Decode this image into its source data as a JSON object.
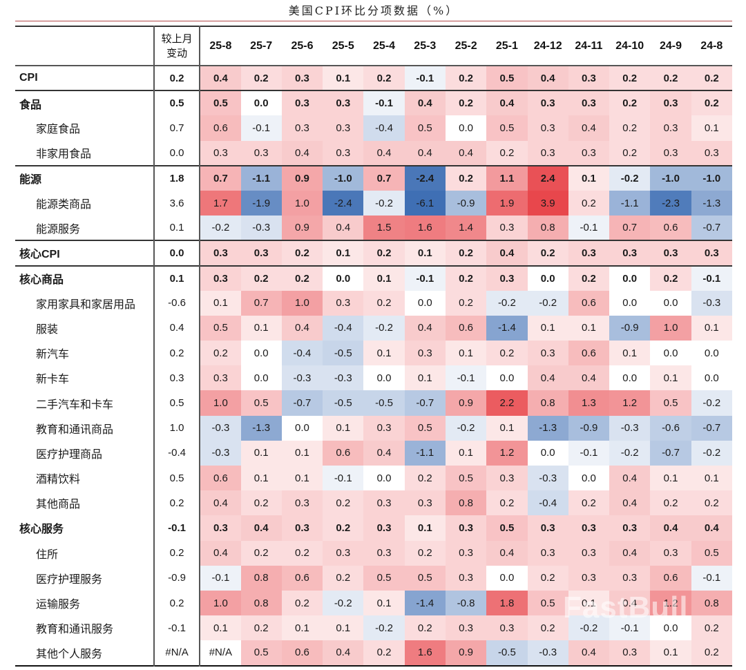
{
  "title": "美国CPI环比分项数据（%）",
  "watermark": "FastBull",
  "colors": {
    "positive_max": "#e8474c",
    "negative_max": "#3f6fb4",
    "neutral": "#ffffff",
    "text": "#1a1a1a"
  },
  "header": {
    "change_label_line1": "较上月",
    "change_label_line2": "变动",
    "months": [
      "25-8",
      "25-7",
      "25-6",
      "25-5",
      "25-4",
      "25-3",
      "25-2",
      "25-1",
      "24-12",
      "24-11",
      "24-10",
      "24-9",
      "24-8"
    ]
  },
  "rows": [
    {
      "label": "CPI",
      "level": 0,
      "bold": true,
      "group_start": true,
      "change": "0.2",
      "values": [
        "0.4",
        "0.2",
        "0.3",
        "0.1",
        "0.2",
        "-0.1",
        "0.2",
        "0.5",
        "0.4",
        "0.3",
        "0.2",
        "0.2",
        "0.2"
      ]
    },
    {
      "label": "食品",
      "level": 0,
      "bold": true,
      "group_start": true,
      "change": "0.5",
      "values": [
        "0.5",
        "0.0",
        "0.3",
        "0.3",
        "-0.1",
        "0.4",
        "0.2",
        "0.4",
        "0.3",
        "0.3",
        "0.2",
        "0.3",
        "0.2"
      ]
    },
    {
      "label": "家庭食品",
      "level": 1,
      "bold": false,
      "group_start": false,
      "change": "0.7",
      "values": [
        "0.6",
        "-0.1",
        "0.3",
        "0.3",
        "-0.4",
        "0.5",
        "0.0",
        "0.5",
        "0.3",
        "0.4",
        "0.2",
        "0.3",
        "0.1"
      ]
    },
    {
      "label": "非家用食品",
      "level": 1,
      "bold": false,
      "group_start": false,
      "change": "0.0",
      "values": [
        "0.3",
        "0.3",
        "0.4",
        "0.3",
        "0.4",
        "0.4",
        "0.4",
        "0.2",
        "0.3",
        "0.3",
        "0.2",
        "0.3",
        "0.3"
      ]
    },
    {
      "label": "能源",
      "level": 0,
      "bold": true,
      "group_start": true,
      "change": "1.8",
      "values": [
        "0.7",
        "-1.1",
        "0.9",
        "-1.0",
        "0.7",
        "-2.4",
        "0.2",
        "1.1",
        "2.4",
        "0.1",
        "-0.2",
        "-1.0",
        "-1.0"
      ]
    },
    {
      "label": "能源类商品",
      "level": 1,
      "bold": false,
      "group_start": false,
      "change": "3.6",
      "values": [
        "1.7",
        "-1.9",
        "1.0",
        "-2.4",
        "-0.2",
        "-6.1",
        "-0.9",
        "1.9",
        "3.9",
        "0.2",
        "-1.1",
        "-2.3",
        "-1.3"
      ]
    },
    {
      "label": "能源服务",
      "level": 1,
      "bold": false,
      "group_start": false,
      "change": "0.1",
      "values": [
        "-0.2",
        "-0.3",
        "0.9",
        "0.4",
        "1.5",
        "1.6",
        "1.4",
        "0.3",
        "0.8",
        "-0.1",
        "0.7",
        "0.6",
        "-0.7"
      ]
    },
    {
      "label": "核心CPI",
      "level": 0,
      "bold": true,
      "group_start": true,
      "change": "0.0",
      "values": [
        "0.3",
        "0.3",
        "0.2",
        "0.1",
        "0.2",
        "0.1",
        "0.2",
        "0.4",
        "0.2",
        "0.3",
        "0.3",
        "0.3",
        "0.3"
      ]
    },
    {
      "label": "核心商品",
      "level": 0,
      "bold": true,
      "group_start": true,
      "change": "0.1",
      "values": [
        "0.3",
        "0.2",
        "0.2",
        "0.0",
        "0.1",
        "-0.1",
        "0.2",
        "0.3",
        "0.0",
        "0.2",
        "0.0",
        "0.2",
        "-0.1"
      ]
    },
    {
      "label": "家用家具和家居用品",
      "level": 1,
      "bold": false,
      "group_start": false,
      "change": "-0.6",
      "values": [
        "0.1",
        "0.7",
        "1.0",
        "0.3",
        "0.2",
        "0.0",
        "0.2",
        "-0.2",
        "-0.2",
        "0.6",
        "0.0",
        "0.0",
        "-0.3"
      ]
    },
    {
      "label": "服装",
      "level": 1,
      "bold": false,
      "group_start": false,
      "change": "0.4",
      "values": [
        "0.5",
        "0.1",
        "0.4",
        "-0.4",
        "-0.2",
        "0.4",
        "0.6",
        "-1.4",
        "0.1",
        "0.1",
        "-0.9",
        "1.0",
        "0.1"
      ]
    },
    {
      "label": "新汽车",
      "level": 1,
      "bold": false,
      "group_start": false,
      "change": "0.2",
      "values": [
        "0.2",
        "0.0",
        "-0.4",
        "-0.5",
        "0.1",
        "0.3",
        "0.1",
        "0.2",
        "0.3",
        "0.6",
        "0.1",
        "0.0",
        "0.0"
      ]
    },
    {
      "label": "新卡车",
      "level": 1,
      "bold": false,
      "group_start": false,
      "change": "0.3",
      "values": [
        "0.3",
        "0.0",
        "-0.3",
        "-0.3",
        "0.0",
        "0.1",
        "-0.1",
        "0.0",
        "0.4",
        "0.4",
        "0.0",
        "0.1",
        "0.0"
      ]
    },
    {
      "label": "二手汽车和卡车",
      "level": 1,
      "bold": false,
      "group_start": false,
      "change": "0.5",
      "values": [
        "1.0",
        "0.5",
        "-0.7",
        "-0.5",
        "-0.5",
        "-0.7",
        "0.9",
        "2.2",
        "0.8",
        "1.3",
        "1.2",
        "0.5",
        "-0.2"
      ]
    },
    {
      "label": "教育和通讯商品",
      "level": 1,
      "bold": false,
      "group_start": false,
      "change": "1.0",
      "values": [
        "-0.3",
        "-1.3",
        "0.0",
        "0.1",
        "0.3",
        "0.5",
        "-0.2",
        "0.1",
        "-1.3",
        "-0.9",
        "-0.3",
        "-0.6",
        "-0.7"
      ]
    },
    {
      "label": "医疗护理商品",
      "level": 1,
      "bold": false,
      "group_start": false,
      "change": "-0.4",
      "values": [
        "-0.3",
        "0.1",
        "0.1",
        "0.6",
        "0.4",
        "-1.1",
        "0.1",
        "1.2",
        "0.0",
        "-0.1",
        "-0.2",
        "-0.7",
        "-0.2"
      ]
    },
    {
      "label": "酒精饮料",
      "level": 1,
      "bold": false,
      "group_start": false,
      "change": "0.5",
      "values": [
        "0.6",
        "0.1",
        "0.1",
        "-0.1",
        "0.0",
        "0.2",
        "0.5",
        "0.3",
        "-0.3",
        "0.0",
        "0.4",
        "0.1",
        "0.1"
      ]
    },
    {
      "label": "其他商品",
      "level": 1,
      "bold": false,
      "group_start": false,
      "change": "0.2",
      "values": [
        "0.4",
        "0.2",
        "0.3",
        "0.2",
        "0.3",
        "0.3",
        "0.8",
        "0.2",
        "-0.4",
        "0.2",
        "0.4",
        "0.2",
        "0.2"
      ]
    },
    {
      "label": "核心服务",
      "level": 0,
      "bold": true,
      "group_start": false,
      "change": "-0.1",
      "values": [
        "0.3",
        "0.4",
        "0.3",
        "0.2",
        "0.3",
        "0.1",
        "0.3",
        "0.5",
        "0.3",
        "0.3",
        "0.3",
        "0.4",
        "0.4"
      ]
    },
    {
      "label": "住所",
      "level": 1,
      "bold": false,
      "group_start": false,
      "change": "0.2",
      "values": [
        "0.4",
        "0.2",
        "0.2",
        "0.3",
        "0.3",
        "0.2",
        "0.3",
        "0.4",
        "0.3",
        "0.3",
        "0.4",
        "0.3",
        "0.5"
      ]
    },
    {
      "label": "医疗护理服务",
      "level": 1,
      "bold": false,
      "group_start": false,
      "change": "-0.9",
      "values": [
        "-0.1",
        "0.8",
        "0.6",
        "0.2",
        "0.5",
        "0.5",
        "0.3",
        "0.0",
        "0.2",
        "0.3",
        "0.3",
        "0.6",
        "-0.1"
      ]
    },
    {
      "label": "运输服务",
      "level": 1,
      "bold": false,
      "group_start": false,
      "change": "0.2",
      "values": [
        "1.0",
        "0.8",
        "0.2",
        "-0.2",
        "0.1",
        "-1.4",
        "-0.8",
        "1.8",
        "0.5",
        "0.1",
        "0.4",
        "1.2",
        "0.8"
      ]
    },
    {
      "label": "教育和通讯服务",
      "level": 1,
      "bold": false,
      "group_start": false,
      "change": "-0.1",
      "values": [
        "0.1",
        "0.2",
        "0.1",
        "0.1",
        "-0.2",
        "0.2",
        "0.3",
        "0.3",
        "0.2",
        "-0.2",
        "-0.1",
        "0.0",
        "0.2"
      ]
    },
    {
      "label": "其他个人服务",
      "level": 1,
      "bold": false,
      "group_start": false,
      "change": "#N/A",
      "values": [
        "#N/A",
        "0.5",
        "0.6",
        "0.4",
        "0.2",
        "1.6",
        "0.9",
        "-0.5",
        "-0.3",
        "0.4",
        "0.3",
        "0.1",
        "0.2"
      ]
    }
  ],
  "chart_data": {
    "type": "heatmap",
    "title": "美国CPI环比分项数据（%）",
    "xlabel": "",
    "ylabel": "",
    "columns": [
      "较上月变动",
      "25-8",
      "25-7",
      "25-6",
      "25-5",
      "25-4",
      "25-3",
      "25-2",
      "25-1",
      "24-12",
      "24-11",
      "24-10",
      "24-9",
      "24-8"
    ],
    "categories": [
      "25-8",
      "25-7",
      "25-6",
      "25-5",
      "25-4",
      "25-3",
      "25-2",
      "25-1",
      "24-12",
      "24-11",
      "24-10",
      "24-9",
      "24-8"
    ],
    "row_labels": [
      "CPI",
      "食品",
      "家庭食品",
      "非家用食品",
      "能源",
      "能源类商品",
      "能源服务",
      "核心CPI",
      "核心商品",
      "家用家具和家居用品",
      "服装",
      "新汽车",
      "新卡车",
      "二手汽车和卡车",
      "教育和通讯商品",
      "医疗护理商品",
      "酒精饮料",
      "其他商品",
      "核心服务",
      "住所",
      "医疗护理服务",
      "运输服务",
      "教育和通讯服务",
      "其他个人服务"
    ],
    "change_vs_prior_month": [
      0.2,
      0.5,
      0.7,
      0.0,
      1.8,
      3.6,
      0.1,
      0.0,
      0.1,
      -0.6,
      0.4,
      0.2,
      0.3,
      0.5,
      1.0,
      -0.4,
      0.5,
      0.2,
      -0.1,
      0.2,
      -0.9,
      0.2,
      -0.1,
      null
    ],
    "series": [
      {
        "name": "CPI",
        "values": [
          0.4,
          0.2,
          0.3,
          0.1,
          0.2,
          -0.1,
          0.2,
          0.5,
          0.4,
          0.3,
          0.2,
          0.2,
          0.2
        ]
      },
      {
        "name": "食品",
        "values": [
          0.5,
          0.0,
          0.3,
          0.3,
          -0.1,
          0.4,
          0.2,
          0.4,
          0.3,
          0.3,
          0.2,
          0.3,
          0.2
        ]
      },
      {
        "name": "家庭食品",
        "values": [
          0.6,
          -0.1,
          0.3,
          0.3,
          -0.4,
          0.5,
          0.0,
          0.5,
          0.3,
          0.4,
          0.2,
          0.3,
          0.1
        ]
      },
      {
        "name": "非家用食品",
        "values": [
          0.3,
          0.3,
          0.4,
          0.3,
          0.4,
          0.4,
          0.4,
          0.2,
          0.3,
          0.3,
          0.2,
          0.3,
          0.3
        ]
      },
      {
        "name": "能源",
        "values": [
          0.7,
          -1.1,
          0.9,
          -1.0,
          0.7,
          -2.4,
          0.2,
          1.1,
          2.4,
          0.1,
          -0.2,
          -1.0,
          -1.0
        ]
      },
      {
        "name": "能源类商品",
        "values": [
          1.7,
          -1.9,
          1.0,
          -2.4,
          -0.2,
          -6.1,
          -0.9,
          1.9,
          3.9,
          0.2,
          -1.1,
          -2.3,
          -1.3
        ]
      },
      {
        "name": "能源服务",
        "values": [
          -0.2,
          -0.3,
          0.9,
          0.4,
          1.5,
          1.6,
          1.4,
          0.3,
          0.8,
          -0.1,
          0.7,
          0.6,
          -0.7
        ]
      },
      {
        "name": "核心CPI",
        "values": [
          0.3,
          0.3,
          0.2,
          0.1,
          0.2,
          0.1,
          0.2,
          0.4,
          0.2,
          0.3,
          0.3,
          0.3,
          0.3
        ]
      },
      {
        "name": "核心商品",
        "values": [
          0.3,
          0.2,
          0.2,
          0.0,
          0.1,
          -0.1,
          0.2,
          0.3,
          0.0,
          0.2,
          0.0,
          0.2,
          -0.1
        ]
      },
      {
        "name": "家用家具和家居用品",
        "values": [
          0.1,
          0.7,
          1.0,
          0.3,
          0.2,
          0.0,
          0.2,
          -0.2,
          -0.2,
          0.6,
          0.0,
          0.0,
          -0.3
        ]
      },
      {
        "name": "服装",
        "values": [
          0.5,
          0.1,
          0.4,
          -0.4,
          -0.2,
          0.4,
          0.6,
          -1.4,
          0.1,
          0.1,
          -0.9,
          1.0,
          0.1
        ]
      },
      {
        "name": "新汽车",
        "values": [
          0.2,
          0.0,
          -0.4,
          -0.5,
          0.1,
          0.3,
          0.1,
          0.2,
          0.3,
          0.6,
          0.1,
          0.0,
          0.0
        ]
      },
      {
        "name": "新卡车",
        "values": [
          0.3,
          0.0,
          -0.3,
          -0.3,
          0.0,
          0.1,
          -0.1,
          0.0,
          0.4,
          0.4,
          0.0,
          0.1,
          0.0
        ]
      },
      {
        "name": "二手汽车和卡车",
        "values": [
          1.0,
          0.5,
          -0.7,
          -0.5,
          -0.5,
          -0.7,
          0.9,
          2.2,
          0.8,
          1.3,
          1.2,
          0.5,
          -0.2
        ]
      },
      {
        "name": "教育和通讯商品",
        "values": [
          -0.3,
          -1.3,
          0.0,
          0.1,
          0.3,
          0.5,
          -0.2,
          0.1,
          -1.3,
          -0.9,
          -0.3,
          -0.6,
          -0.7
        ]
      },
      {
        "name": "医疗护理商品",
        "values": [
          -0.3,
          0.1,
          0.1,
          0.6,
          0.4,
          -1.1,
          0.1,
          1.2,
          0.0,
          -0.1,
          -0.2,
          -0.7,
          -0.2
        ]
      },
      {
        "name": "酒精饮料",
        "values": [
          0.6,
          0.1,
          0.1,
          -0.1,
          0.0,
          0.2,
          0.5,
          0.3,
          -0.3,
          0.0,
          0.4,
          0.1,
          0.1
        ]
      },
      {
        "name": "其他商品",
        "values": [
          0.4,
          0.2,
          0.3,
          0.2,
          0.3,
          0.3,
          0.8,
          0.2,
          -0.4,
          0.2,
          0.4,
          0.2,
          0.2
        ]
      },
      {
        "name": "核心服务",
        "values": [
          0.3,
          0.4,
          0.3,
          0.2,
          0.3,
          0.1,
          0.3,
          0.5,
          0.3,
          0.3,
          0.3,
          0.4,
          0.4
        ]
      },
      {
        "name": "住所",
        "values": [
          0.4,
          0.2,
          0.2,
          0.3,
          0.3,
          0.2,
          0.3,
          0.4,
          0.3,
          0.3,
          0.4,
          0.3,
          0.5
        ]
      },
      {
        "name": "医疗护理服务",
        "values": [
          -0.1,
          0.8,
          0.6,
          0.2,
          0.5,
          0.5,
          0.3,
          0.0,
          0.2,
          0.3,
          0.3,
          0.6,
          -0.1
        ]
      },
      {
        "name": "运输服务",
        "values": [
          1.0,
          0.8,
          0.2,
          -0.2,
          0.1,
          -1.4,
          -0.8,
          1.8,
          0.5,
          0.1,
          0.4,
          1.2,
          0.8
        ]
      },
      {
        "name": "教育和通讯服务",
        "values": [
          0.1,
          0.2,
          0.1,
          0.1,
          -0.2,
          0.2,
          0.3,
          0.3,
          0.2,
          -0.2,
          -0.1,
          0.0,
          0.2
        ]
      },
      {
        "name": "其他个人服务",
        "values": [
          null,
          0.5,
          0.6,
          0.4,
          0.2,
          1.6,
          0.9,
          -0.5,
          -0.3,
          0.4,
          0.3,
          0.1,
          0.2
        ]
      }
    ],
    "color_scale": {
      "negative": "#3f6fb4",
      "zero": "#ffffff",
      "positive": "#e8474c"
    },
    "grid": false,
    "legend": "none"
  }
}
